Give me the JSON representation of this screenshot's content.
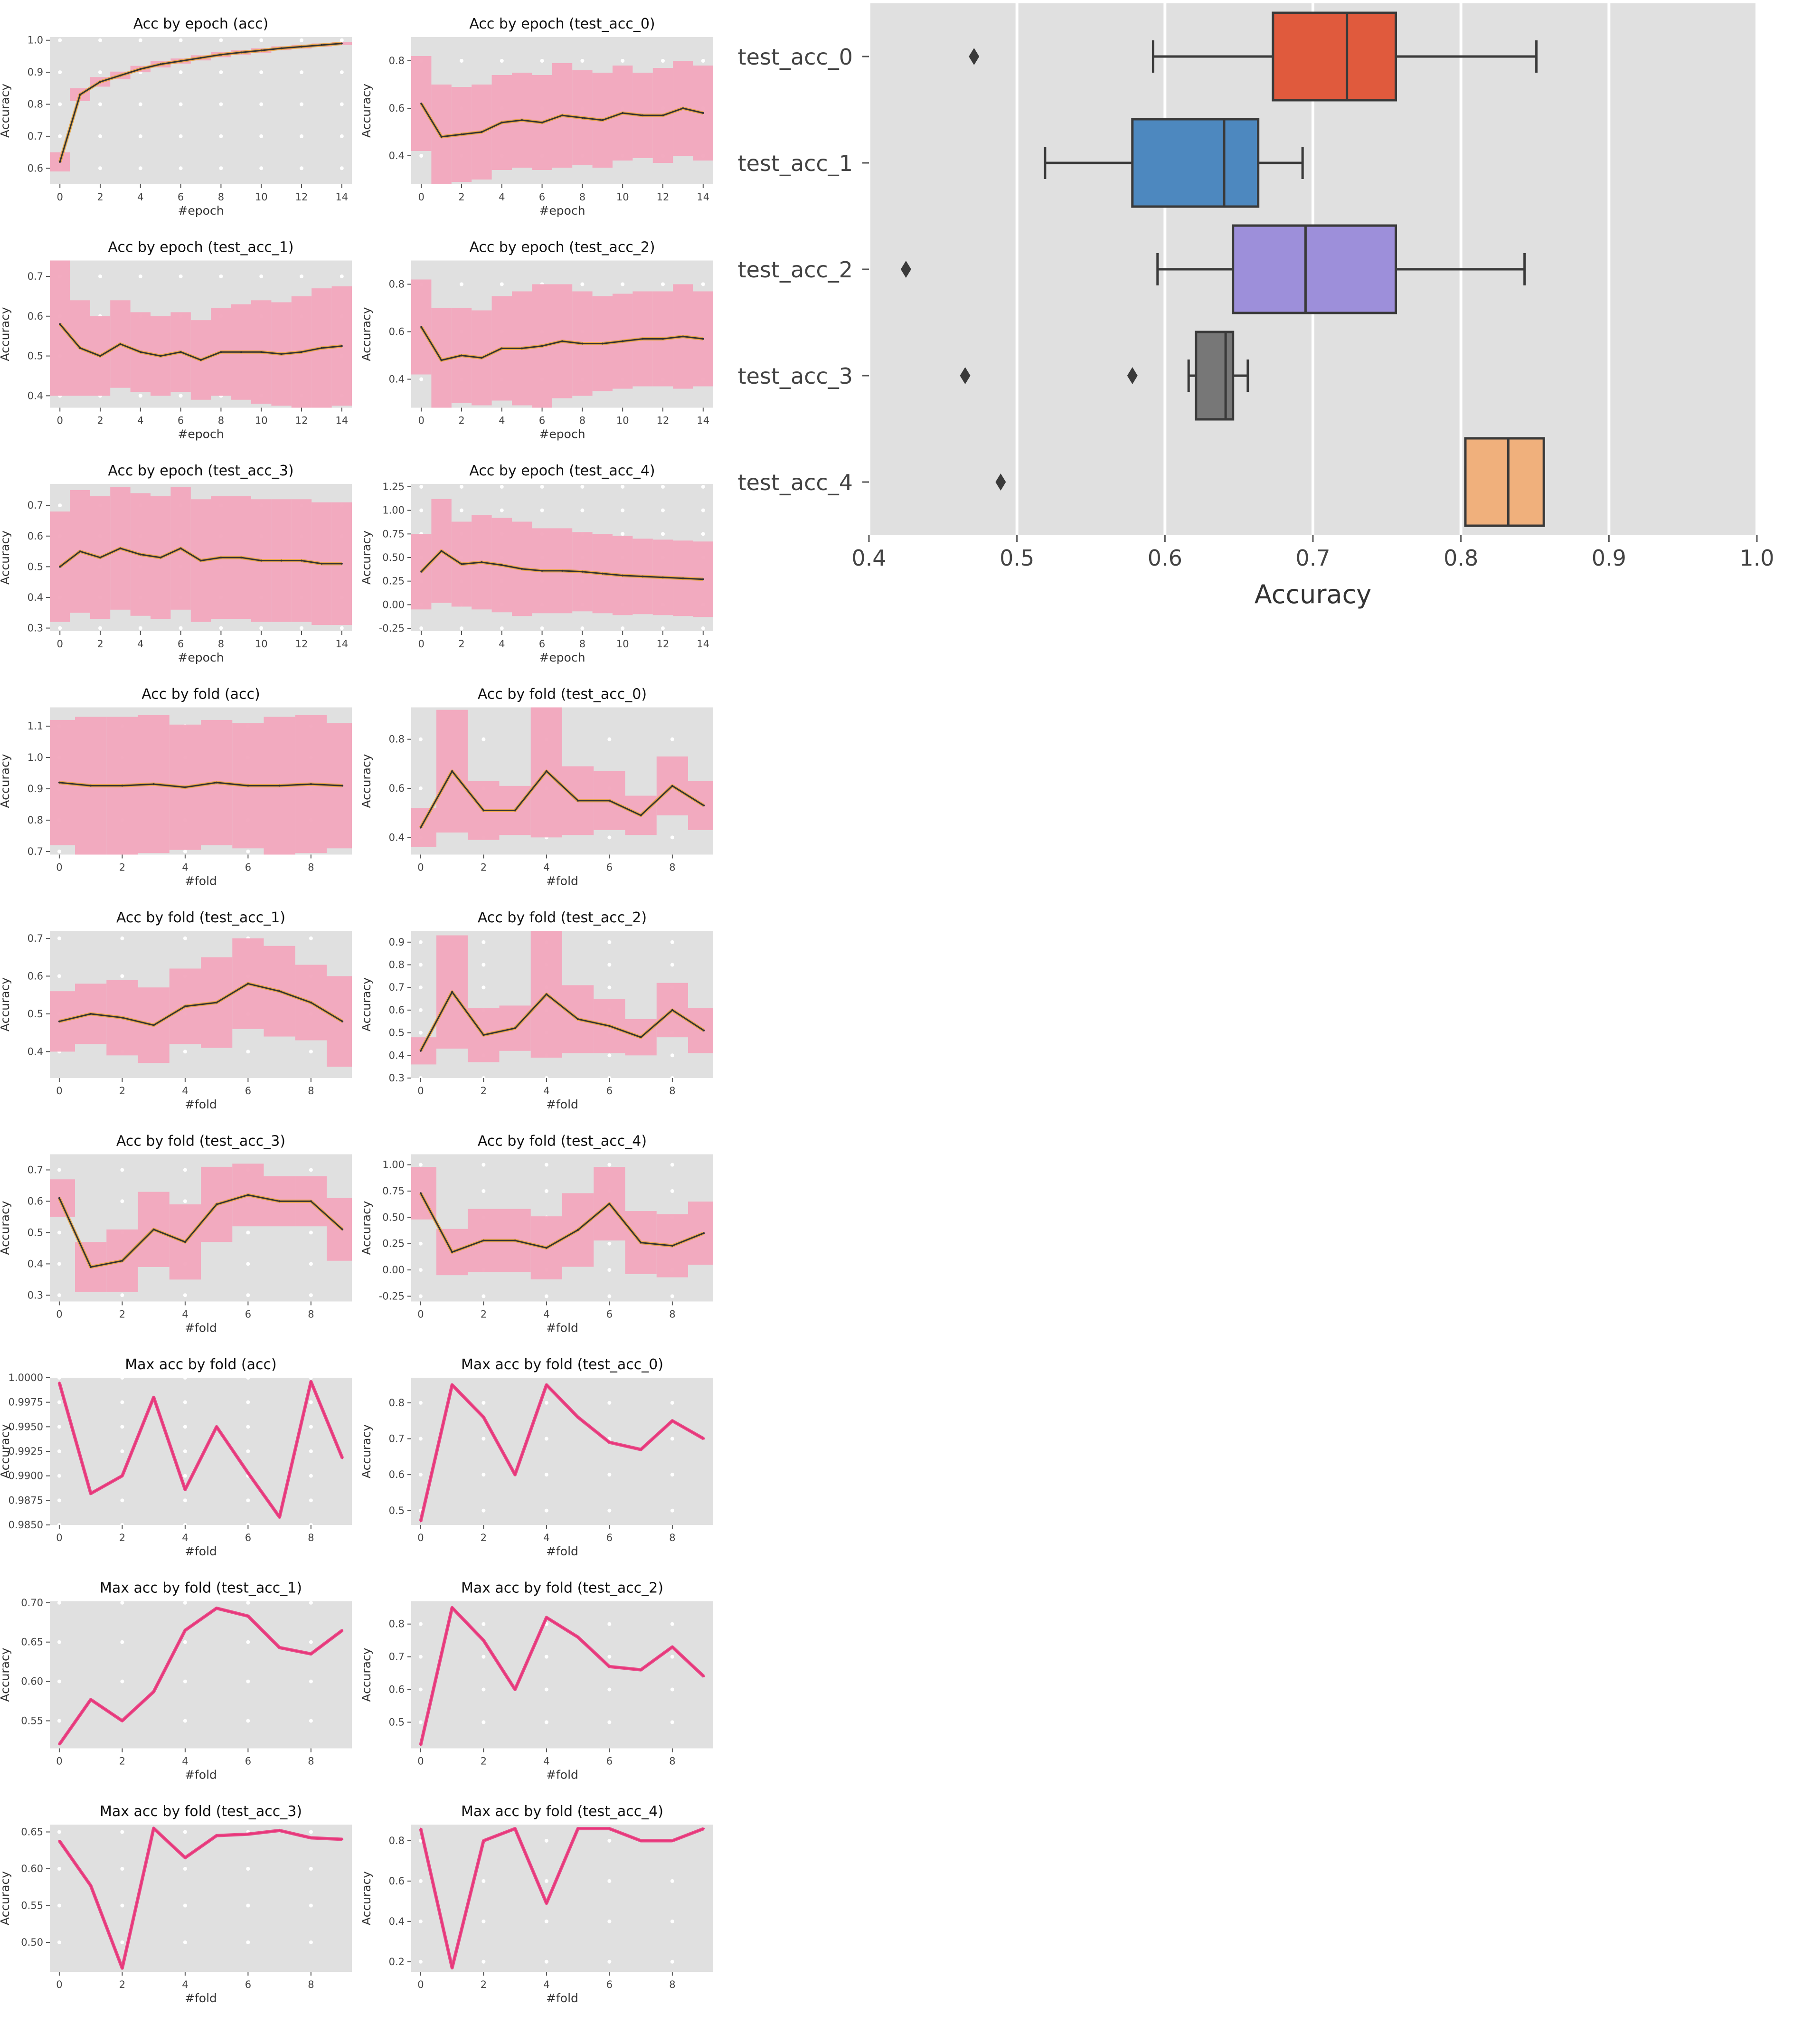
{
  "figure": {
    "background": "#ffffff"
  },
  "style": {
    "panel_bg": "#e0e0e0",
    "grid_color": "#ffffff",
    "band_color": "#f2a7bd",
    "band_grey": "#bdbdbd",
    "mean_color": "#e8a33a",
    "line_color": "#e8357a",
    "line_dark": "#333333"
  },
  "chart_data": [
    {
      "type": "line",
      "title": "Acc by epoch (acc)",
      "xlabel": "#epoch",
      "ylabel": "Accuracy",
      "x": [
        0,
        1,
        2,
        3,
        4,
        5,
        6,
        7,
        8,
        9,
        10,
        11,
        12,
        13,
        14
      ],
      "y": [
        0.62,
        0.83,
        0.87,
        0.89,
        0.91,
        0.925,
        0.935,
        0.945,
        0.955,
        0.962,
        0.968,
        0.975,
        0.98,
        0.985,
        0.99
      ],
      "band": [
        0.03,
        0.02,
        0.015,
        0.012,
        0.01,
        0.01,
        0.008,
        0.008,
        0.008,
        0.007,
        0.007,
        0.006,
        0.006,
        0.005,
        0.005
      ],
      "xlim": [
        -0.5,
        14.5
      ],
      "ylim": [
        0.55,
        1.01
      ],
      "xticks": [
        0,
        2,
        4,
        6,
        8,
        10,
        12,
        14
      ],
      "yticks": [
        0.6,
        0.7,
        0.8,
        0.9,
        1.0
      ],
      "ytick_labels": [
        "0.6",
        "0.7",
        "0.8",
        "0.9",
        "1.0"
      ]
    },
    {
      "type": "line",
      "title": "Acc by epoch (test_acc_0)",
      "xlabel": "#epoch",
      "ylabel": "Accuracy",
      "x": [
        0,
        1,
        2,
        3,
        4,
        5,
        6,
        7,
        8,
        9,
        10,
        11,
        12,
        13,
        14
      ],
      "y": [
        0.62,
        0.48,
        0.49,
        0.5,
        0.54,
        0.55,
        0.54,
        0.57,
        0.56,
        0.55,
        0.58,
        0.57,
        0.57,
        0.6,
        0.58
      ],
      "band": [
        0.2,
        0.22,
        0.2,
        0.2,
        0.2,
        0.2,
        0.2,
        0.22,
        0.2,
        0.2,
        0.2,
        0.18,
        0.2,
        0.2,
        0.2
      ],
      "xlim": [
        -0.5,
        14.5
      ],
      "ylim": [
        0.28,
        0.9
      ],
      "xticks": [
        0,
        2,
        4,
        6,
        8,
        10,
        12,
        14
      ],
      "yticks": [
        0.4,
        0.6,
        0.8
      ],
      "ytick_labels": [
        "0.4",
        "0.6",
        "0.8"
      ]
    },
    {
      "type": "line",
      "title": "Acc by epoch (test_acc_1)",
      "xlabel": "#epoch",
      "ylabel": "Accuracy",
      "x": [
        0,
        1,
        2,
        3,
        4,
        5,
        6,
        7,
        8,
        9,
        10,
        11,
        12,
        13,
        14
      ],
      "y": [
        0.58,
        0.52,
        0.5,
        0.53,
        0.51,
        0.5,
        0.51,
        0.49,
        0.51,
        0.51,
        0.51,
        0.505,
        0.51,
        0.52,
        0.525
      ],
      "band": [
        0.18,
        0.12,
        0.1,
        0.11,
        0.1,
        0.1,
        0.1,
        0.1,
        0.11,
        0.12,
        0.13,
        0.13,
        0.14,
        0.15,
        0.15
      ],
      "xlim": [
        -0.5,
        14.5
      ],
      "ylim": [
        0.37,
        0.74
      ],
      "xticks": [
        0,
        2,
        4,
        6,
        8,
        10,
        12,
        14
      ],
      "yticks": [
        0.4,
        0.5,
        0.6,
        0.7
      ],
      "ytick_labels": [
        "0.4",
        "0.5",
        "0.6",
        "0.7"
      ]
    },
    {
      "type": "line",
      "title": "Acc by epoch (test_acc_2)",
      "xlabel": "#epoch",
      "ylabel": "Accuracy",
      "x": [
        0,
        1,
        2,
        3,
        4,
        5,
        6,
        7,
        8,
        9,
        10,
        11,
        12,
        13,
        14
      ],
      "y": [
        0.62,
        0.48,
        0.5,
        0.49,
        0.53,
        0.53,
        0.54,
        0.56,
        0.55,
        0.55,
        0.56,
        0.57,
        0.57,
        0.58,
        0.57
      ],
      "band": [
        0.2,
        0.22,
        0.2,
        0.2,
        0.22,
        0.24,
        0.26,
        0.24,
        0.22,
        0.2,
        0.2,
        0.2,
        0.2,
        0.22,
        0.2
      ],
      "xlim": [
        -0.5,
        14.5
      ],
      "ylim": [
        0.28,
        0.9
      ],
      "xticks": [
        0,
        2,
        4,
        6,
        8,
        10,
        12,
        14
      ],
      "yticks": [
        0.4,
        0.6,
        0.8
      ],
      "ytick_labels": [
        "0.4",
        "0.6",
        "0.8"
      ]
    },
    {
      "type": "line",
      "title": "Acc by epoch (test_acc_3)",
      "xlabel": "#epoch",
      "ylabel": "Accuracy",
      "x": [
        0,
        1,
        2,
        3,
        4,
        5,
        6,
        7,
        8,
        9,
        10,
        11,
        12,
        13,
        14
      ],
      "y": [
        0.5,
        0.55,
        0.53,
        0.56,
        0.54,
        0.53,
        0.56,
        0.52,
        0.53,
        0.53,
        0.52,
        0.52,
        0.52,
        0.51,
        0.51
      ],
      "band": [
        0.18,
        0.2,
        0.2,
        0.2,
        0.2,
        0.2,
        0.2,
        0.2,
        0.2,
        0.2,
        0.2,
        0.2,
        0.2,
        0.2,
        0.2
      ],
      "xlim": [
        -0.5,
        14.5
      ],
      "ylim": [
        0.29,
        0.77
      ],
      "xticks": [
        0,
        2,
        4,
        6,
        8,
        10,
        12,
        14
      ],
      "yticks": [
        0.3,
        0.4,
        0.5,
        0.6,
        0.7
      ],
      "ytick_labels": [
        "0.3",
        "0.4",
        "0.5",
        "0.6",
        "0.7"
      ]
    },
    {
      "type": "line",
      "title": "Acc by epoch (test_acc_4)",
      "xlabel": "#epoch",
      "ylabel": "Accuracy",
      "x": [
        0,
        1,
        2,
        3,
        4,
        5,
        6,
        7,
        8,
        9,
        10,
        11,
        12,
        13,
        14
      ],
      "y": [
        0.35,
        0.57,
        0.43,
        0.45,
        0.42,
        0.38,
        0.36,
        0.36,
        0.35,
        0.33,
        0.31,
        0.3,
        0.29,
        0.28,
        0.27
      ],
      "band": [
        0.4,
        0.55,
        0.45,
        0.5,
        0.5,
        0.5,
        0.45,
        0.45,
        0.42,
        0.42,
        0.42,
        0.4,
        0.4,
        0.4,
        0.4
      ],
      "xlim": [
        -0.5,
        14.5
      ],
      "ylim": [
        -0.28,
        1.28
      ],
      "xticks": [
        0,
        2,
        4,
        6,
        8,
        10,
        12,
        14
      ],
      "yticks": [
        -0.25,
        0,
        0.25,
        0.5,
        0.75,
        1.0,
        1.25
      ],
      "ytick_labels": [
        "-0.25",
        "0.00",
        "0.25",
        "0.50",
        "0.75",
        "1.00",
        "1.25"
      ]
    },
    {
      "type": "line",
      "title": "Acc by fold (acc)",
      "xlabel": "#fold",
      "ylabel": "Accuracy",
      "x": [
        0,
        1,
        2,
        3,
        4,
        5,
        6,
        7,
        8,
        9
      ],
      "y": [
        0.92,
        0.91,
        0.91,
        0.915,
        0.905,
        0.92,
        0.91,
        0.91,
        0.915,
        0.91
      ],
      "band": [
        0.2,
        0.22,
        0.22,
        0.22,
        0.2,
        0.2,
        0.2,
        0.22,
        0.22,
        0.2
      ],
      "xlim": [
        -0.3,
        9.3
      ],
      "ylim": [
        0.69,
        1.16
      ],
      "xticks": [
        0,
        2,
        4,
        6,
        8
      ],
      "yticks": [
        0.7,
        0.8,
        0.9,
        1.0,
        1.1
      ],
      "ytick_labels": [
        "0.7",
        "0.8",
        "0.9",
        "1.0",
        "1.1"
      ]
    },
    {
      "type": "line",
      "title": "Acc by fold (test_acc_0)",
      "xlabel": "#fold",
      "ylabel": "Accuracy",
      "x": [
        0,
        1,
        2,
        3,
        4,
        5,
        6,
        7,
        8,
        9
      ],
      "y": [
        0.44,
        0.67,
        0.51,
        0.51,
        0.67,
        0.55,
        0.55,
        0.49,
        0.61,
        0.53
      ],
      "band": [
        0.08,
        0.25,
        0.12,
        0.1,
        0.27,
        0.14,
        0.12,
        0.08,
        0.12,
        0.1
      ],
      "xlim": [
        -0.3,
        9.3
      ],
      "ylim": [
        0.33,
        0.93
      ],
      "xticks": [
        0,
        2,
        4,
        6,
        8
      ],
      "yticks": [
        0.4,
        0.6,
        0.8
      ],
      "ytick_labels": [
        "0.4",
        "0.6",
        "0.8"
      ]
    },
    {
      "type": "line",
      "title": "Acc by fold (test_acc_1)",
      "xlabel": "#fold",
      "ylabel": "Accuracy",
      "x": [
        0,
        1,
        2,
        3,
        4,
        5,
        6,
        7,
        8,
        9
      ],
      "y": [
        0.48,
        0.5,
        0.49,
        0.47,
        0.52,
        0.53,
        0.58,
        0.56,
        0.53,
        0.48
      ],
      "band": [
        0.08,
        0.08,
        0.1,
        0.1,
        0.1,
        0.12,
        0.12,
        0.12,
        0.1,
        0.12
      ],
      "xlim": [
        -0.3,
        9.3
      ],
      "ylim": [
        0.33,
        0.72
      ],
      "xticks": [
        0,
        2,
        4,
        6,
        8
      ],
      "yticks": [
        0.4,
        0.5,
        0.6,
        0.7
      ],
      "ytick_labels": [
        "0.4",
        "0.5",
        "0.6",
        "0.7"
      ]
    },
    {
      "type": "line",
      "title": "Acc by fold (test_acc_2)",
      "xlabel": "#fold",
      "ylabel": "Accuracy",
      "x": [
        0,
        1,
        2,
        3,
        4,
        5,
        6,
        7,
        8,
        9
      ],
      "y": [
        0.42,
        0.68,
        0.49,
        0.52,
        0.67,
        0.56,
        0.53,
        0.48,
        0.6,
        0.51
      ],
      "band": [
        0.06,
        0.25,
        0.12,
        0.1,
        0.28,
        0.15,
        0.12,
        0.08,
        0.12,
        0.1
      ],
      "xlim": [
        -0.3,
        9.3
      ],
      "ylim": [
        0.3,
        0.95
      ],
      "xticks": [
        0,
        2,
        4,
        6,
        8
      ],
      "yticks": [
        0.3,
        0.4,
        0.5,
        0.6,
        0.7,
        0.8,
        0.9
      ],
      "ytick_labels": [
        "0.3",
        "0.4",
        "0.5",
        "0.6",
        "0.7",
        "0.8",
        "0.9"
      ]
    },
    {
      "type": "line",
      "title": "Acc by fold (test_acc_3)",
      "xlabel": "#fold",
      "ylabel": "Accuracy",
      "x": [
        0,
        1,
        2,
        3,
        4,
        5,
        6,
        7,
        8,
        9
      ],
      "y": [
        0.61,
        0.39,
        0.41,
        0.51,
        0.47,
        0.59,
        0.62,
        0.6,
        0.6,
        0.51
      ],
      "band": [
        0.06,
        0.08,
        0.1,
        0.12,
        0.12,
        0.12,
        0.1,
        0.08,
        0.08,
        0.1
      ],
      "xlim": [
        -0.3,
        9.3
      ],
      "ylim": [
        0.28,
        0.75
      ],
      "xticks": [
        0,
        2,
        4,
        6,
        8
      ],
      "yticks": [
        0.3,
        0.4,
        0.5,
        0.6,
        0.7
      ],
      "ytick_labels": [
        "0.3",
        "0.4",
        "0.5",
        "0.6",
        "0.7"
      ]
    },
    {
      "type": "line",
      "title": "Acc by fold (test_acc_4)",
      "xlabel": "#fold",
      "ylabel": "Accuracy",
      "x": [
        0,
        1,
        2,
        3,
        4,
        5,
        6,
        7,
        8,
        9
      ],
      "y": [
        0.73,
        0.17,
        0.28,
        0.28,
        0.21,
        0.38,
        0.63,
        0.26,
        0.23,
        0.35
      ],
      "band": [
        0.25,
        0.22,
        0.3,
        0.3,
        0.3,
        0.35,
        0.35,
        0.3,
        0.3,
        0.3
      ],
      "xlim": [
        -0.3,
        9.3
      ],
      "ylim": [
        -0.3,
        1.1
      ],
      "xticks": [
        0,
        2,
        4,
        6,
        8
      ],
      "yticks": [
        -0.25,
        0,
        0.25,
        0.5,
        0.75,
        1.0
      ],
      "ytick_labels": [
        "-0.25",
        "0.00",
        "0.25",
        "0.50",
        "0.75",
        "1.00"
      ]
    },
    {
      "type": "line",
      "title": "Max acc by fold (acc)",
      "xlabel": "#fold",
      "ylabel": "Accuracy",
      "x": [
        0,
        1,
        2,
        3,
        4,
        5,
        6,
        7,
        8,
        9
      ],
      "y": [
        0.9995,
        0.9882,
        0.99,
        0.998,
        0.9886,
        0.995,
        0.9903,
        0.9858,
        0.9996,
        0.9918
      ],
      "xlim": [
        -0.3,
        9.3
      ],
      "ylim": [
        0.985,
        1.0
      ],
      "xticks": [
        0,
        2,
        4,
        6,
        8
      ],
      "yticks": [
        0.985,
        0.9875,
        0.99,
        0.9925,
        0.995,
        0.9975,
        1.0
      ],
      "ytick_labels": [
        "0.9850",
        "0.9875",
        "0.9900",
        "0.9925",
        "0.9950",
        "0.9975",
        "1.0000"
      ]
    },
    {
      "type": "line",
      "title": "Max acc by fold (test_acc_0)",
      "xlabel": "#fold",
      "ylabel": "Accuracy",
      "x": [
        0,
        1,
        2,
        3,
        4,
        5,
        6,
        7,
        8,
        9
      ],
      "y": [
        0.47,
        0.85,
        0.76,
        0.6,
        0.85,
        0.76,
        0.69,
        0.67,
        0.75,
        0.7
      ],
      "xlim": [
        -0.3,
        9.3
      ],
      "ylim": [
        0.46,
        0.87
      ],
      "xticks": [
        0,
        2,
        4,
        6,
        8
      ],
      "yticks": [
        0.5,
        0.6,
        0.7,
        0.8
      ],
      "ytick_labels": [
        "0.5",
        "0.6",
        "0.7",
        "0.8"
      ]
    },
    {
      "type": "line",
      "title": "Max acc by fold (test_acc_1)",
      "xlabel": "#fold",
      "ylabel": "Accuracy",
      "x": [
        0,
        1,
        2,
        3,
        4,
        5,
        6,
        7,
        8,
        9
      ],
      "y": [
        0.52,
        0.577,
        0.55,
        0.587,
        0.665,
        0.693,
        0.683,
        0.643,
        0.635,
        0.665
      ],
      "xlim": [
        -0.3,
        9.3
      ],
      "ylim": [
        0.515,
        0.702
      ],
      "xticks": [
        0,
        2,
        4,
        6,
        8
      ],
      "yticks": [
        0.55,
        0.6,
        0.65,
        0.7
      ],
      "ytick_labels": [
        "0.55",
        "0.60",
        "0.65",
        "0.70"
      ]
    },
    {
      "type": "line",
      "title": "Max acc by fold (test_acc_2)",
      "xlabel": "#fold",
      "ylabel": "Accuracy",
      "x": [
        0,
        1,
        2,
        3,
        4,
        5,
        6,
        7,
        8,
        9
      ],
      "y": [
        0.43,
        0.85,
        0.75,
        0.6,
        0.82,
        0.76,
        0.67,
        0.66,
        0.73,
        0.64
      ],
      "xlim": [
        -0.3,
        9.3
      ],
      "ylim": [
        0.42,
        0.87
      ],
      "xticks": [
        0,
        2,
        4,
        6,
        8
      ],
      "yticks": [
        0.5,
        0.6,
        0.7,
        0.8
      ],
      "ytick_labels": [
        "0.5",
        "0.6",
        "0.7",
        "0.8"
      ]
    },
    {
      "type": "line",
      "title": "Max acc by fold (test_acc_3)",
      "xlabel": "#fold",
      "ylabel": "Accuracy",
      "x": [
        0,
        1,
        2,
        3,
        4,
        5,
        6,
        7,
        8,
        9
      ],
      "y": [
        0.638,
        0.577,
        0.465,
        0.655,
        0.615,
        0.645,
        0.647,
        0.652,
        0.642,
        0.64
      ],
      "xlim": [
        -0.3,
        9.3
      ],
      "ylim": [
        0.46,
        0.66
      ],
      "xticks": [
        0,
        2,
        4,
        6,
        8
      ],
      "yticks": [
        0.5,
        0.55,
        0.6,
        0.65
      ],
      "ytick_labels": [
        "0.50",
        "0.55",
        "0.60",
        "0.65"
      ]
    },
    {
      "type": "line",
      "title": "Max acc by fold (test_acc_4)",
      "xlabel": "#fold",
      "ylabel": "Accuracy",
      "x": [
        0,
        1,
        2,
        3,
        4,
        5,
        6,
        7,
        8,
        9
      ],
      "y": [
        0.86,
        0.17,
        0.8,
        0.86,
        0.49,
        0.86,
        0.86,
        0.8,
        0.8,
        0.86
      ],
      "xlim": [
        -0.3,
        9.3
      ],
      "ylim": [
        0.15,
        0.88
      ],
      "xticks": [
        0,
        2,
        4,
        6,
        8
      ],
      "yticks": [
        0.2,
        0.4,
        0.6,
        0.8
      ],
      "ytick_labels": [
        "0.2",
        "0.4",
        "0.6",
        "0.8"
      ]
    },
    {
      "type": "box",
      "orientation": "horizontal",
      "xlabel": "Accuracy",
      "xlim": [
        0.4,
        1.0
      ],
      "xticks": [
        0.4,
        0.5,
        0.6,
        0.7,
        0.8,
        0.9,
        1.0
      ],
      "xtick_labels": [
        "0.4",
        "0.5",
        "0.6",
        "0.7",
        "0.8",
        "0.9",
        "1.0"
      ],
      "categories": [
        "test_acc_0",
        "test_acc_1",
        "test_acc_2",
        "test_acc_3",
        "test_acc_4"
      ],
      "boxes": [
        {
          "name": "test_acc_0",
          "whisker_low": 0.592,
          "q1": 0.673,
          "median": 0.723,
          "q3": 0.756,
          "whisker_high": 0.851,
          "outliers": [
            0.471
          ],
          "color": "#e05a3d"
        },
        {
          "name": "test_acc_1",
          "whisker_low": 0.519,
          "q1": 0.578,
          "median": 0.64,
          "q3": 0.663,
          "whisker_high": 0.693,
          "outliers": [],
          "color": "#4d88bf"
        },
        {
          "name": "test_acc_2",
          "whisker_low": 0.595,
          "q1": 0.646,
          "median": 0.695,
          "q3": 0.756,
          "whisker_high": 0.843,
          "outliers": [
            0.425
          ],
          "color": "#9d8fda"
        },
        {
          "name": "test_acc_3",
          "whisker_low": 0.616,
          "q1": 0.621,
          "median": 0.641,
          "q3": 0.646,
          "whisker_high": 0.656,
          "outliers": [
            0.465,
            0.578
          ],
          "color": "#777777"
        },
        {
          "name": "test_acc_4",
          "whisker_low": 0.803,
          "q1": 0.803,
          "median": 0.832,
          "q3": 0.856,
          "whisker_high": 0.856,
          "outliers": [
            0.489
          ],
          "color": "#f0b07c"
        }
      ]
    }
  ]
}
